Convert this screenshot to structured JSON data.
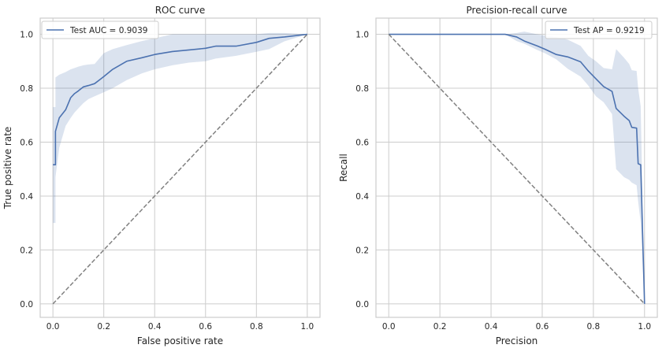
{
  "colors": {
    "line": "#4c72b0",
    "band": "#4c72b0",
    "diagonal": "#808080",
    "grid": "#cccccc",
    "text": "#262626"
  },
  "chart_data": [
    {
      "type": "line",
      "title": "ROC curve",
      "xlabel": "False positive rate",
      "ylabel": "True positive rate",
      "xlim": [
        -0.05,
        1.05
      ],
      "ylim": [
        -0.05,
        1.06
      ],
      "xticks": [
        0.0,
        0.2,
        0.4,
        0.6,
        0.8,
        1.0
      ],
      "xtick_labels": [
        "0.0",
        "0.2",
        "0.4",
        "0.6",
        "0.8",
        "1.0"
      ],
      "yticks": [
        0.0,
        0.2,
        0.4,
        0.6,
        0.8,
        1.0
      ],
      "ytick_labels": [
        "0.0",
        "0.2",
        "0.4",
        "0.6",
        "0.8",
        "1.0"
      ],
      "grid": true,
      "legend": {
        "position": "upper-left",
        "entries": [
          "Test AUC = 0.9039"
        ]
      },
      "series": [
        {
          "name": "Test AUC = 0.9039",
          "style": "solid",
          "x": [
            0.0,
            0.01,
            0.01,
            0.025,
            0.05,
            0.07,
            0.085,
            0.1,
            0.12,
            0.14,
            0.164,
            0.2,
            0.235,
            0.29,
            0.35,
            0.4,
            0.47,
            0.535,
            0.6,
            0.64,
            0.72,
            0.8,
            0.85,
            0.91,
            1.0
          ],
          "y": [
            0.516,
            0.516,
            0.64,
            0.69,
            0.72,
            0.765,
            0.78,
            0.79,
            0.805,
            0.81,
            0.817,
            0.843,
            0.87,
            0.9,
            0.913,
            0.925,
            0.936,
            0.942,
            0.948,
            0.956,
            0.956,
            0.97,
            0.985,
            0.99,
            1.0
          ],
          "band_upper": [
            0.73,
            0.73,
            0.84,
            0.85,
            0.86,
            0.87,
            0.875,
            0.88,
            0.885,
            0.888,
            0.89,
            0.93,
            0.945,
            0.96,
            0.975,
            0.985,
            1.0,
            1.0,
            1.0,
            1.0,
            1.0,
            1.0,
            1.005,
            1.005,
            1.0
          ],
          "band_lower": [
            0.3,
            0.3,
            0.47,
            0.58,
            0.66,
            0.69,
            0.71,
            0.725,
            0.745,
            0.76,
            0.77,
            0.785,
            0.8,
            0.83,
            0.855,
            0.87,
            0.885,
            0.895,
            0.9,
            0.91,
            0.92,
            0.935,
            0.945,
            0.974,
            1.0
          ]
        },
        {
          "name": "chance",
          "style": "dashed",
          "x": [
            0.0,
            1.0
          ],
          "y": [
            0.0,
            1.0
          ]
        }
      ]
    },
    {
      "type": "line",
      "title": "Precision-recall curve",
      "xlabel": "Precision",
      "ylabel": "Recall",
      "xlim": [
        -0.05,
        1.05
      ],
      "ylim": [
        -0.05,
        1.06
      ],
      "xticks": [
        0.0,
        0.2,
        0.4,
        0.6,
        0.8,
        1.0
      ],
      "xtick_labels": [
        "0.0",
        "0.2",
        "0.4",
        "0.6",
        "0.8",
        "1.0"
      ],
      "yticks": [
        0.0,
        0.2,
        0.4,
        0.6,
        0.8,
        1.0
      ],
      "ytick_labels": [
        "0.0",
        "0.2",
        "0.4",
        "0.6",
        "0.8",
        "1.0"
      ],
      "grid": true,
      "legend": {
        "position": "upper-right",
        "entries": [
          "Test AP = 0.9219"
        ]
      },
      "series": [
        {
          "name": "Test AP = 0.9219",
          "style": "solid",
          "x": [
            0.0,
            0.455,
            0.5,
            0.53,
            0.58,
            0.61,
            0.655,
            0.7,
            0.75,
            0.78,
            0.81,
            0.84,
            0.873,
            0.889,
            0.92,
            0.94,
            0.95,
            0.969,
            0.975,
            0.985,
            1.0
          ],
          "y": [
            1.0,
            1.0,
            0.99,
            0.975,
            0.957,
            0.945,
            0.925,
            0.916,
            0.898,
            0.864,
            0.835,
            0.806,
            0.788,
            0.725,
            0.696,
            0.68,
            0.655,
            0.652,
            0.52,
            0.516,
            0.0
          ],
          "band_upper": [
            1.0,
            1.0,
            1.005,
            1.01,
            1.0,
            0.995,
            0.99,
            0.98,
            0.957,
            0.92,
            0.9,
            0.875,
            0.87,
            0.945,
            0.913,
            0.89,
            0.867,
            0.864,
            0.8,
            0.733,
            0.0
          ],
          "band_lower": [
            1.0,
            1.0,
            0.975,
            0.965,
            0.942,
            0.93,
            0.907,
            0.872,
            0.843,
            0.81,
            0.77,
            0.748,
            0.704,
            0.5,
            0.47,
            0.46,
            0.45,
            0.44,
            0.38,
            0.3,
            0.0
          ]
        },
        {
          "name": "chance",
          "style": "dashed",
          "x": [
            0.0,
            1.0
          ],
          "y": [
            1.0,
            0.0
          ]
        }
      ]
    }
  ]
}
